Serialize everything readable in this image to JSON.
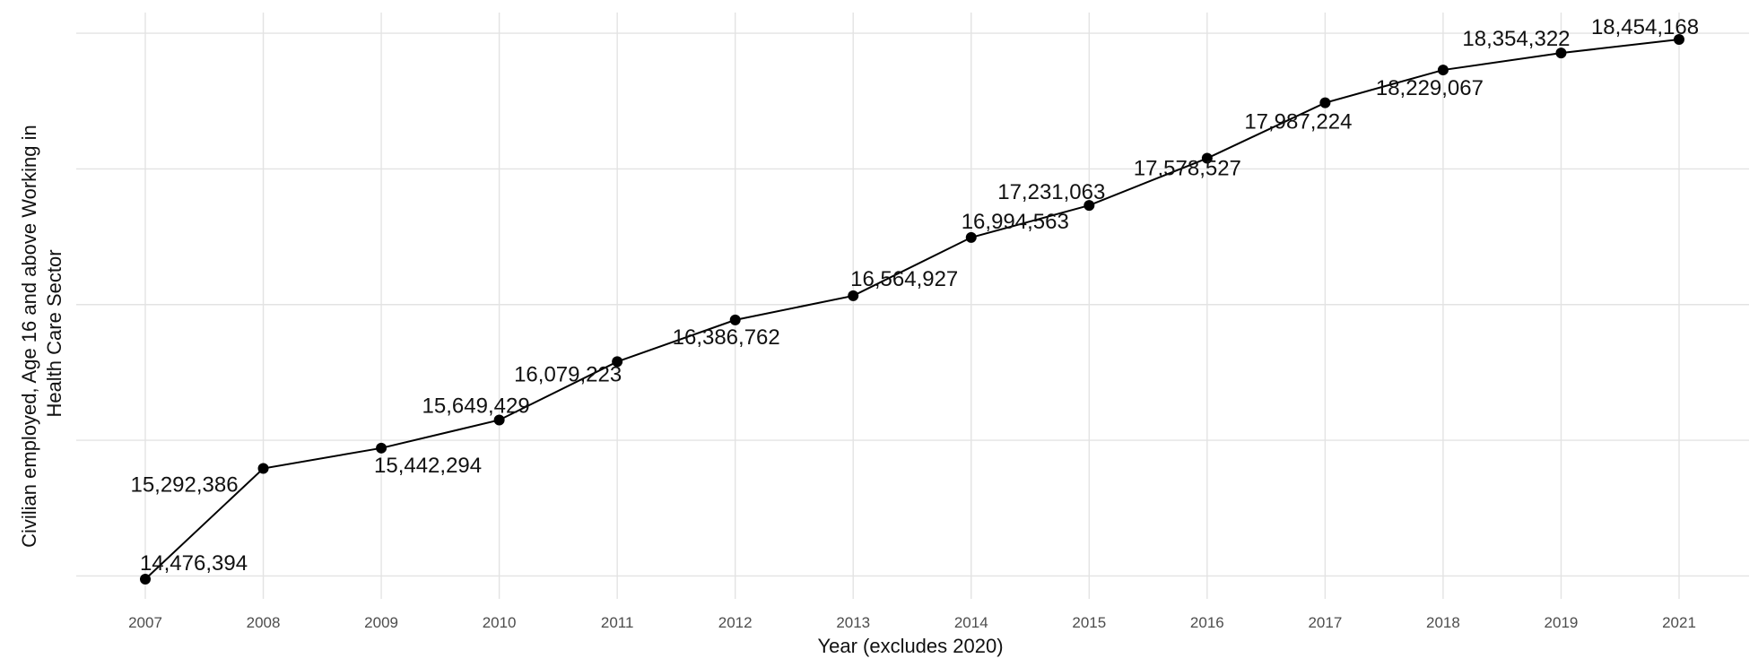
{
  "chart_data": {
    "type": "line",
    "xlabel": "Year (excludes 2020)",
    "ylabel_lines": [
      "Civilian employed, Age 16 and above Working in",
      "Health Care Sector"
    ],
    "y_tick_labels_shown": false,
    "grid": true,
    "colors": {
      "line": "#000000",
      "point": "#000000",
      "grid": "#e3e3e3"
    },
    "x": [
      "2007",
      "2008",
      "2009",
      "2010",
      "2011",
      "2012",
      "2013",
      "2014",
      "2015",
      "2016",
      "2017",
      "2018",
      "2019",
      "2021"
    ],
    "series": [
      {
        "values": [
          14476394,
          15292386,
          15442294,
          15649429,
          16079223,
          16386762,
          16564927,
          16994563,
          17231063,
          17578527,
          17987224,
          18229067,
          18354322,
          18454168
        ],
        "labels": [
          "14,476,394",
          "15,292,386",
          "15,442,294",
          "15,649,429",
          "16,079,223",
          "16,386,762",
          "16,564,927",
          "16,994,563",
          "17,231,063",
          "17,578,527",
          "17,987,224",
          "18,229,067",
          "18,354,322",
          "18,454,168"
        ]
      }
    ],
    "ylim": [
      14200000,
      18700000
    ]
  }
}
